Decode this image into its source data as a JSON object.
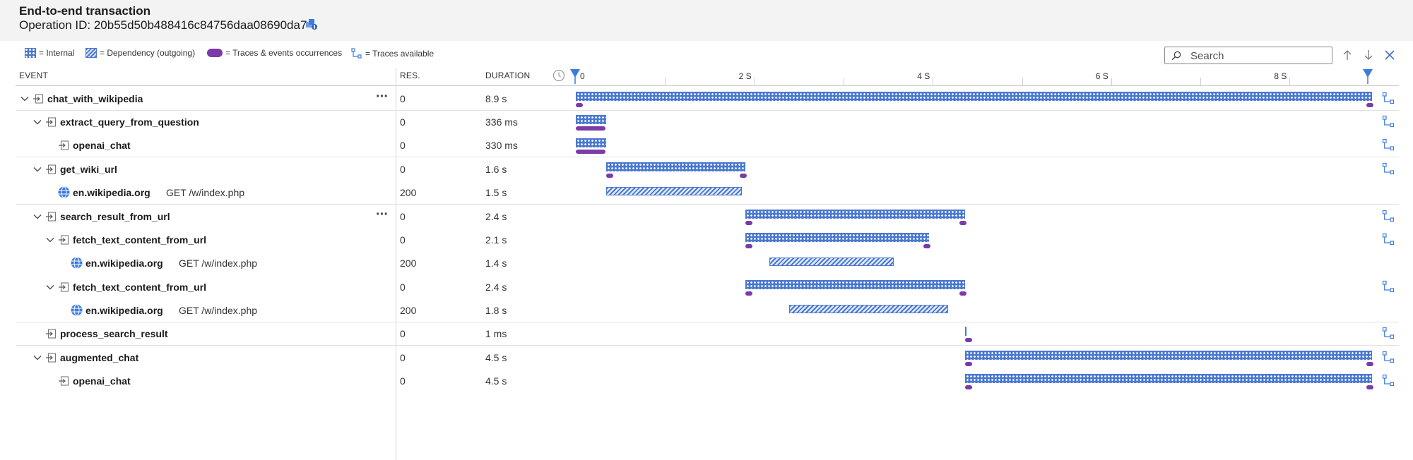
{
  "header": {
    "title": "End-to-end transaction",
    "operation_id": "Operation ID: 20b55d50b488416c84756daa08690da7"
  },
  "legend": {
    "internal": "= Internal",
    "dependency": "= Dependency (outgoing)",
    "traces_events": "= Traces & events occurrences",
    "traces_available": "= Traces available"
  },
  "search": {
    "placeholder": "Search"
  },
  "columns": {
    "event": "EVENT",
    "res": "RES.",
    "duration": "DURATION"
  },
  "timeline": {
    "axis_labels": [
      "0",
      "2 S",
      "4 S",
      "6 S",
      "8 S"
    ],
    "max_seconds": 8.9
  },
  "rows": [
    {
      "name": "chat_with_wikipedia",
      "detail": "",
      "res": "0",
      "duration": "8.9 s"
    },
    {
      "name": "extract_query_from_question",
      "detail": "",
      "res": "0",
      "duration": "336 ms"
    },
    {
      "name": "openai_chat",
      "detail": "",
      "res": "0",
      "duration": "330 ms"
    },
    {
      "name": "get_wiki_url",
      "detail": "",
      "res": "0",
      "duration": "1.6 s"
    },
    {
      "name": "en.wikipedia.org",
      "detail": "GET /w/index.php",
      "res": "200",
      "duration": "1.5 s"
    },
    {
      "name": "search_result_from_url",
      "detail": "",
      "res": "0",
      "duration": "2.4 s"
    },
    {
      "name": "fetch_text_content_from_url",
      "detail": "",
      "res": "0",
      "duration": "2.1 s"
    },
    {
      "name": "en.wikipedia.org",
      "detail": "GET /w/index.php",
      "res": "200",
      "duration": "1.4 s"
    },
    {
      "name": "fetch_text_content_from_url",
      "detail": "",
      "res": "0",
      "duration": "2.4 s"
    },
    {
      "name": "en.wikipedia.org",
      "detail": "GET /w/index.php",
      "res": "200",
      "duration": "1.8 s"
    },
    {
      "name": "process_search_result",
      "detail": "",
      "res": "0",
      "duration": "1 ms"
    },
    {
      "name": "augmented_chat",
      "detail": "",
      "res": "0",
      "duration": "4.5 s"
    },
    {
      "name": "openai_chat",
      "detail": "",
      "res": "0",
      "duration": "4.5 s"
    }
  ],
  "colors": {
    "internal_bar": "#4a78d0",
    "trace_marker": "#7c3aa8",
    "timeline_marker": "#3d7be0"
  },
  "icons": {
    "operation": "operation-icon",
    "dependency": "globe-icon",
    "traces_available": "traces-available-icon",
    "expand": "chevron-down-icon"
  }
}
